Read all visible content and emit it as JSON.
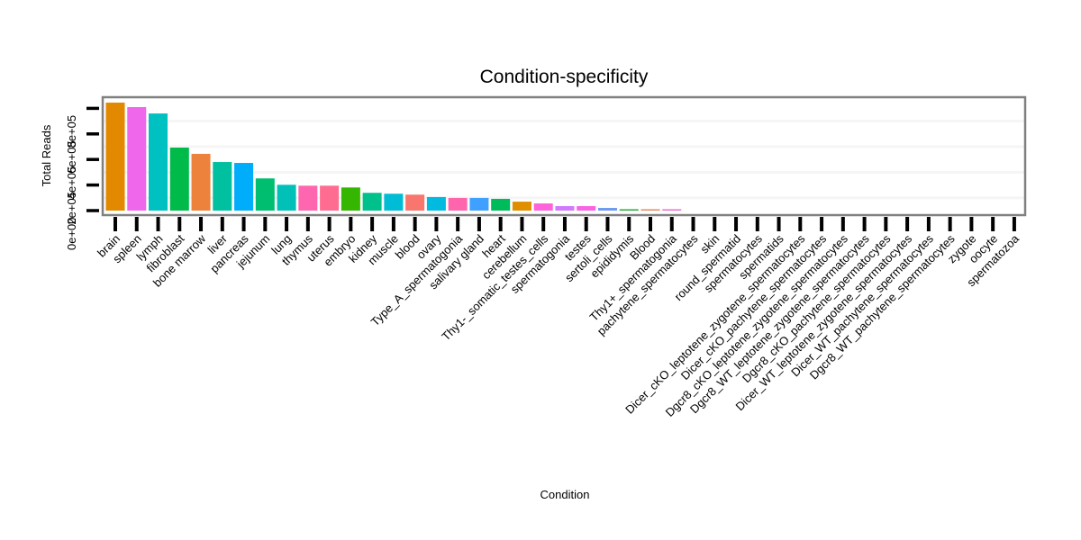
{
  "chart_data": {
    "type": "bar",
    "title": "Condition-specificity",
    "xlabel": "Condition",
    "ylabel": "Total Reads",
    "ylim": [
      0,
      870000
    ],
    "yticks": [
      0,
      200000,
      400000,
      600000,
      800000
    ],
    "ytick_labels": [
      "0e+00",
      "2e+05",
      "4e+05",
      "6e+05",
      "8e+05"
    ],
    "grid": true,
    "legend": "none",
    "categories": [
      "brain",
      "spleen",
      "lymph",
      "fibroblast",
      "bone marrow",
      "liver",
      "pancreas",
      "jejunum",
      "lung",
      "thymus",
      "uterus",
      "embryo",
      "kidney",
      "muscle",
      "blood",
      "ovary",
      "Type_A_spermatogonia",
      "salivary gland",
      "heart",
      "cerebellum",
      "Thy1-_somatic_testes_cells",
      "spermatogonia",
      "testes",
      "sertoli_cells",
      "epididymis",
      "Blood",
      "Thy1+_spermatogonia",
      "pachytene_spermatocytes",
      "skin",
      "round_spermatid",
      "spermatocytes",
      "spermatids",
      "Dicer_cKO_leptotene_zygotene_spermatocytes",
      "Dicer_cKO_pachytene_spermatocytes",
      "Dgcr8_cKO_leptotene_zygotene_spermatocytes",
      "Dgcr8_WT_leptotene_zygotene_spermatocytes",
      "Dgcr8_cKO_pachytene_spermatocytes",
      "Dicer_WT_leptotene_zygotene_spermatocytes",
      "Dicer_WT_pachytene_spermatocytes",
      "Dgcr8_WT_pachytene_spermatocytes",
      "zygote",
      "oocyte",
      "spermatozoa"
    ],
    "values": [
      845000,
      810000,
      760000,
      493000,
      444000,
      380000,
      373000,
      252000,
      202000,
      195000,
      195000,
      181000,
      139000,
      132000,
      125000,
      106000,
      99000,
      99000,
      92000,
      70000,
      56000,
      35000,
      35000,
      21000,
      7000,
      6000,
      5000,
      0,
      0,
      0,
      0,
      0,
      0,
      0,
      0,
      0,
      0,
      0,
      0,
      0,
      0,
      0,
      0
    ],
    "colors": [
      "#e38900",
      "#ef67eb",
      "#00c1c1",
      "#00ba4a",
      "#ec823c",
      "#00c0a0",
      "#00adfa",
      "#00be70",
      "#00c0b8",
      "#ff66b0",
      "#ff6c91",
      "#35b600",
      "#00c08b",
      "#00bcd4",
      "#f8766d",
      "#00bae0",
      "#ff65ac",
      "#3fa0ff",
      "#00bb5c",
      "#df8f00",
      "#ff62db",
      "#d179ff",
      "#f864e3",
      "#6f9af0",
      "#2aa73a",
      "#e08a5e",
      "#e66ed0",
      "#cccccc",
      "#cccccc",
      "#cccccc",
      "#cccccc",
      "#cccccc",
      "#cccccc",
      "#cccccc",
      "#cccccc",
      "#cccccc",
      "#cccccc",
      "#cccccc",
      "#cccccc",
      "#cccccc",
      "#cccccc",
      "#cccccc",
      "#cccccc"
    ],
    "panel_border_color": "#808080",
    "gridline_color": "#f5f5f5"
  }
}
